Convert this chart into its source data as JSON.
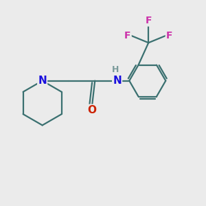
{
  "background_color": "#ebebeb",
  "bond_color": "#3a7070",
  "N_color": "#1a10dd",
  "O_color": "#cc2200",
  "F_color": "#cc33aa",
  "H_color": "#7a9a9a",
  "line_width": 1.6,
  "figsize": [
    3.0,
    3.0
  ],
  "dpi": 100,
  "xlim": [
    0,
    10
  ],
  "ylim": [
    -1,
    9
  ]
}
